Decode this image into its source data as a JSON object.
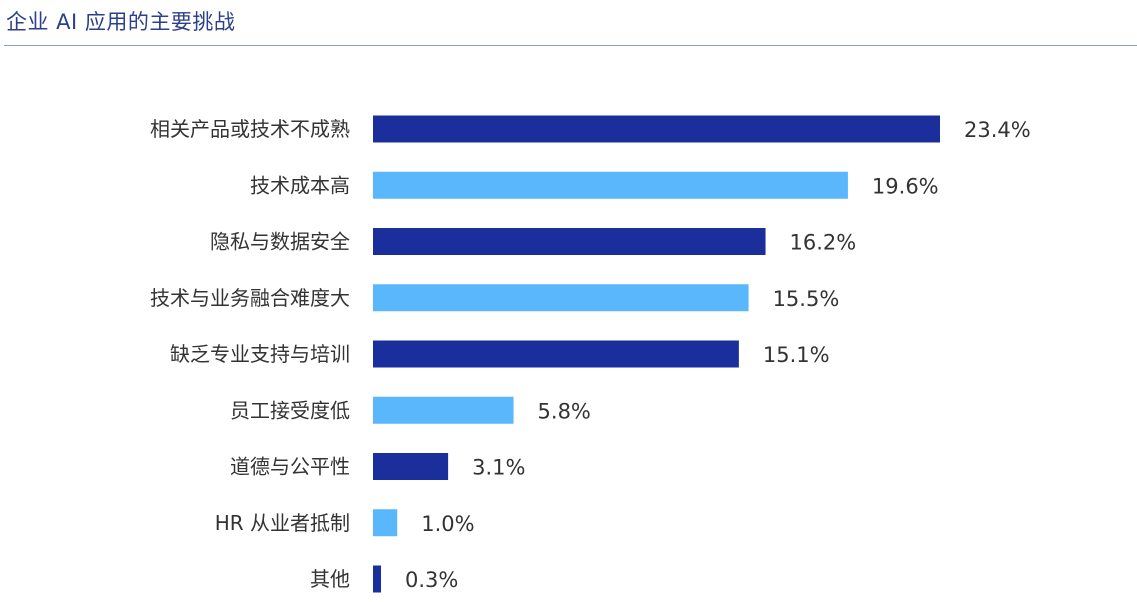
{
  "chart_data": {
    "type": "bar",
    "orientation": "horizontal",
    "title": "企业 AI 应用的主要挑战",
    "categories": [
      "相关产品或技术不成熟",
      "技术成本高",
      "隐私与数据安全",
      "技术与业务融合难度大",
      "缺乏专业支持与培训",
      "员工接受度低",
      "道德与公平性",
      "HR 从业者抵制",
      "其他"
    ],
    "values": [
      23.4,
      19.6,
      16.2,
      15.5,
      15.1,
      5.8,
      3.1,
      1.0,
      0.3
    ],
    "data_labels": [
      "23.4%",
      "19.6%",
      "16.2%",
      "15.5%",
      "15.1%",
      "5.8%",
      "3.1%",
      "1.0%",
      "0.3%"
    ],
    "unit": "%",
    "colors": [
      "#1b2f9c",
      "#5ab7fc"
    ],
    "color_pattern": "alternating",
    "grid": false,
    "legend": "none"
  }
}
